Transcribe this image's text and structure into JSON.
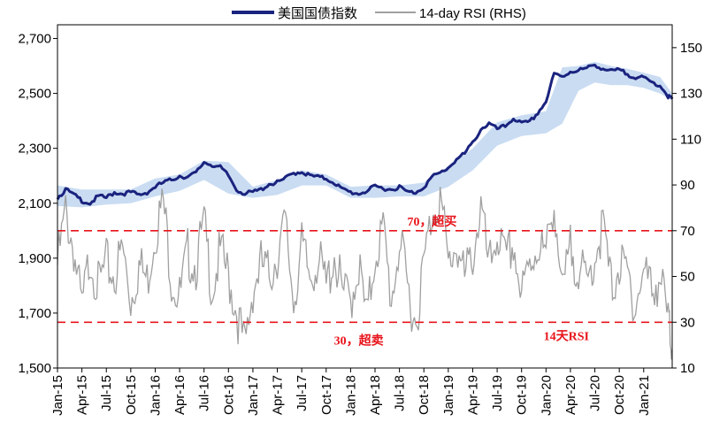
{
  "chart_data": {
    "type": "line",
    "legend": {
      "placement": "top",
      "entries": [
        "美国国债指数",
        "14-day RSI (RHS)"
      ]
    },
    "x_tick_labels": [
      "Jan-15",
      "Apr-15",
      "Jul-15",
      "Oct-15",
      "Jan-16",
      "Apr-16",
      "Jul-16",
      "Oct-16",
      "Jan-17",
      "Apr-17",
      "Jul-17",
      "Oct-17",
      "Jan-18",
      "Apr-18",
      "Jul-18",
      "Oct-18",
      "Jan-19",
      "Apr-19",
      "Jul-19",
      "Oct-19",
      "Jan-20",
      "Apr-20",
      "Jul-20",
      "Oct-20",
      "Jan-21"
    ],
    "left_axis": {
      "ylim": [
        1500,
        2750
      ],
      "ticks": [
        1500,
        1700,
        1900,
        2100,
        2300,
        2500,
        2700
      ],
      "tick_labels": [
        "1,500",
        "1,700",
        "1,900",
        "2,100",
        "2,300",
        "2,500",
        "2,700"
      ]
    },
    "right_axis": {
      "ylim": [
        10,
        160
      ],
      "ticks": [
        10,
        30,
        50,
        70,
        90,
        110,
        130,
        150
      ],
      "tick_labels": [
        "10",
        "30",
        "50",
        "70",
        "90",
        "110",
        "130",
        "150"
      ]
    },
    "x_range_months": [
      0,
      75.5
    ],
    "series": [
      {
        "name": "美国国债指数",
        "axis": "left",
        "color": "#1a237e",
        "x_months": [
          0,
          1,
          2,
          3,
          4,
          5,
          6,
          7,
          8,
          9,
          10,
          11,
          12,
          13,
          14,
          15,
          16,
          17,
          18,
          19,
          20,
          21,
          22,
          23,
          24,
          25,
          26,
          27,
          28,
          29,
          30,
          31,
          32,
          33,
          34,
          35,
          36,
          37,
          38,
          39,
          40,
          41,
          42,
          43,
          44,
          45,
          46,
          47,
          48,
          49,
          50,
          51,
          52,
          53,
          54,
          55,
          56,
          57,
          58,
          59,
          60,
          61,
          62,
          63,
          64,
          65,
          66,
          67,
          68,
          69,
          70,
          71,
          72,
          73,
          74,
          75,
          75.5
        ],
        "values": [
          2120,
          2150,
          2130,
          2110,
          2100,
          2125,
          2120,
          2140,
          2135,
          2140,
          2130,
          2140,
          2160,
          2175,
          2185,
          2200,
          2195,
          2210,
          2250,
          2240,
          2230,
          2200,
          2150,
          2135,
          2140,
          2150,
          2170,
          2175,
          2190,
          2210,
          2215,
          2200,
          2195,
          2190,
          2175,
          2150,
          2140,
          2135,
          2145,
          2160,
          2155,
          2150,
          2160,
          2140,
          2140,
          2160,
          2195,
          2210,
          2230,
          2260,
          2280,
          2320,
          2370,
          2390,
          2370,
          2380,
          2410,
          2390,
          2395,
          2430,
          2470,
          2570,
          2560,
          2580,
          2585,
          2590,
          2605,
          2590,
          2580,
          2585,
          2570,
          2560,
          2555,
          2540,
          2530,
          2490,
          2480
        ]
      },
      {
        "name": "14-day RSI (RHS)",
        "axis": "right",
        "color": "#a0a0a0",
        "x_months": [
          0,
          1,
          2,
          3,
          4,
          5,
          6,
          7,
          8,
          9,
          10,
          11,
          12,
          13,
          14,
          15,
          16,
          17,
          18,
          19,
          20,
          21,
          22,
          23,
          24,
          25,
          26,
          27,
          28,
          29,
          30,
          31,
          32,
          33,
          34,
          35,
          36,
          37,
          38,
          39,
          40,
          41,
          42,
          43,
          44,
          45,
          46,
          47,
          48,
          49,
          50,
          51,
          52,
          53,
          54,
          55,
          56,
          57,
          58,
          59,
          60,
          61,
          62,
          63,
          64,
          65,
          66,
          67,
          68,
          69,
          70,
          71,
          72,
          73,
          74,
          75,
          75.5
        ],
        "values": [
          55,
          78,
          62,
          35,
          60,
          45,
          55,
          50,
          62,
          40,
          55,
          48,
          70,
          82,
          50,
          40,
          60,
          55,
          72,
          45,
          60,
          50,
          35,
          18,
          45,
          55,
          50,
          60,
          72,
          40,
          62,
          50,
          58,
          45,
          60,
          42,
          40,
          55,
          30,
          60,
          70,
          40,
          65,
          45,
          30,
          55,
          78,
          85,
          55,
          65,
          48,
          60,
          80,
          52,
          70,
          55,
          65,
          40,
          55,
          65,
          58,
          85,
          40,
          62,
          55,
          45,
          60,
          72,
          45,
          55,
          50,
          38,
          52,
          45,
          50,
          30,
          18
        ]
      },
      {
        "name": "",
        "type": "band",
        "axis": "left",
        "color": "#c9dcf2",
        "x_months": [
          0,
          3,
          6,
          9,
          12,
          15,
          18,
          21,
          24,
          27,
          30,
          33,
          36,
          39,
          42,
          45,
          48,
          51,
          54,
          57,
          60,
          62,
          64,
          66,
          68,
          70,
          72,
          74,
          75.5
        ],
        "upper": [
          2165,
          2150,
          2150,
          2150,
          2190,
          2205,
          2255,
          2250,
          2160,
          2185,
          2220,
          2205,
          2160,
          2165,
          2165,
          2175,
          2235,
          2300,
          2395,
          2420,
          2435,
          2595,
          2600,
          2615,
          2600,
          2590,
          2575,
          2560,
          2500
        ],
        "lower": [
          2090,
          2085,
          2095,
          2100,
          2125,
          2145,
          2185,
          2135,
          2120,
          2130,
          2165,
          2165,
          2120,
          2120,
          2125,
          2125,
          2160,
          2220,
          2310,
          2345,
          2355,
          2390,
          2510,
          2540,
          2530,
          2530,
          2520,
          2500,
          2475
        ]
      }
    ],
    "reference_lines": [
      {
        "axis": "right",
        "value": 70,
        "label": "70，超买",
        "color": "#e8141b"
      },
      {
        "axis": "right",
        "value": 30,
        "label": "30，超卖",
        "color": "#e8141b"
      }
    ],
    "annotations": [
      {
        "text": "14天RSI",
        "color": "#e8141b"
      }
    ]
  }
}
